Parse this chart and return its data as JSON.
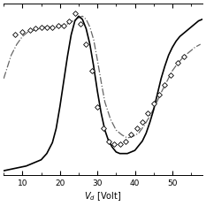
{
  "title": "",
  "xlabel": "$V_d$ [Volt]",
  "xlim": [
    5,
    58
  ],
  "ylim": [
    -0.02,
    1.08
  ],
  "xticks": [
    10,
    20,
    30,
    40,
    50
  ],
  "figsize": [
    2.33,
    2.33
  ],
  "dpi": 100,
  "solid_line_color": "#000000",
  "dash_dot_color": "#666666",
  "scatter_x": [
    8.0,
    10.0,
    12.0,
    13.5,
    15.0,
    16.5,
    18.0,
    19.5,
    21.0,
    22.5,
    24.0,
    25.5,
    27.0,
    28.5,
    30.0,
    31.5,
    33.0,
    34.5,
    36.0,
    37.5,
    39.0,
    40.5,
    42.0,
    43.5,
    45.0,
    46.5,
    48.0,
    49.5,
    51.5,
    53.0
  ],
  "scatter_y": [
    0.88,
    0.9,
    0.91,
    0.92,
    0.93,
    0.93,
    0.93,
    0.94,
    0.94,
    0.97,
    1.02,
    0.95,
    0.82,
    0.65,
    0.42,
    0.28,
    0.2,
    0.18,
    0.18,
    0.2,
    0.24,
    0.28,
    0.32,
    0.38,
    0.44,
    0.5,
    0.56,
    0.62,
    0.7,
    0.74
  ],
  "solid_x": [
    5.0,
    7.0,
    9.0,
    11.0,
    13.0,
    15.0,
    16.5,
    18.0,
    19.0,
    20.0,
    21.0,
    22.0,
    23.0,
    24.0,
    25.0,
    26.0,
    27.0,
    28.0,
    29.0,
    30.0,
    31.0,
    32.0,
    33.0,
    34.0,
    35.0,
    36.0,
    37.0,
    38.0,
    39.0,
    40.0,
    41.0,
    42.0,
    43.0,
    44.0,
    45.0,
    46.0,
    47.0,
    48.0,
    49.0,
    50.0,
    51.0,
    52.0,
    53.0,
    54.0,
    55.0,
    56.0,
    57.0,
    58.0
  ],
  "solid_y": [
    0.01,
    0.02,
    0.03,
    0.04,
    0.06,
    0.08,
    0.12,
    0.19,
    0.28,
    0.42,
    0.58,
    0.74,
    0.88,
    0.97,
    1.0,
    0.98,
    0.92,
    0.82,
    0.68,
    0.52,
    0.38,
    0.27,
    0.2,
    0.16,
    0.13,
    0.12,
    0.12,
    0.12,
    0.13,
    0.14,
    0.17,
    0.2,
    0.25,
    0.32,
    0.4,
    0.5,
    0.6,
    0.68,
    0.75,
    0.8,
    0.84,
    0.87,
    0.89,
    0.91,
    0.93,
    0.95,
    0.97,
    0.98
  ],
  "dashdot_x": [
    5.0,
    7.0,
    8.5,
    10.0,
    11.5,
    13.0,
    14.5,
    16.0,
    17.5,
    19.0,
    20.5,
    22.0,
    23.5,
    25.0,
    26.0,
    27.0,
    28.0,
    29.0,
    30.0,
    31.0,
    32.0,
    33.5,
    35.0,
    36.5,
    38.0,
    39.5,
    41.0,
    42.5,
    44.0,
    45.5,
    47.0,
    48.5,
    50.0,
    51.5,
    53.0,
    54.5,
    56.0,
    57.5
  ],
  "dashdot_y": [
    0.6,
    0.75,
    0.82,
    0.87,
    0.9,
    0.91,
    0.92,
    0.93,
    0.93,
    0.93,
    0.94,
    0.95,
    0.97,
    0.99,
    1.0,
    0.98,
    0.93,
    0.85,
    0.72,
    0.58,
    0.45,
    0.34,
    0.27,
    0.24,
    0.22,
    0.23,
    0.25,
    0.3,
    0.36,
    0.43,
    0.51,
    0.58,
    0.65,
    0.7,
    0.74,
    0.77,
    0.8,
    0.82
  ]
}
